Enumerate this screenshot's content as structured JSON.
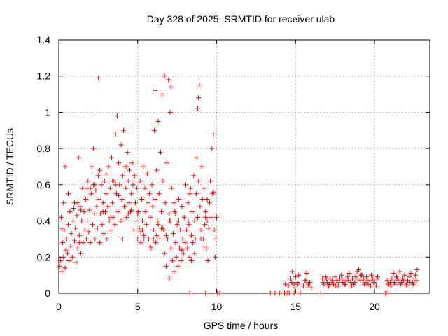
{
  "chart_data": {
    "type": "scatter",
    "title": "Day 328 of 2025, SRMTID for receiver ulab",
    "xlabel": "GPS time / hours",
    "ylabel": "SRMTID / TECUs",
    "xlim": [
      0,
      23.5
    ],
    "ylim": [
      0,
      1.4
    ],
    "xticks": [
      0,
      5,
      10,
      15,
      20
    ],
    "xtick_labels": [
      "0",
      "5",
      "10",
      "15",
      "20"
    ],
    "yticks": [
      0,
      0.2,
      0.4,
      0.6,
      0.8,
      1,
      1.2,
      1.4
    ],
    "ytick_labels": [
      "0",
      "0.2",
      "0.4",
      "0.6",
      "0.8",
      "1",
      "1.2",
      "1.4"
    ],
    "grid": true,
    "marker": "plus",
    "color": "#ff0000",
    "series": [
      {
        "name": "SRMTID",
        "x": [
          0.05,
          0.1,
          0.15,
          0.2,
          0.25,
          0.3,
          0.35,
          0.4,
          0.45,
          0.5,
          0.55,
          0.6,
          0.65,
          0.7,
          0.75,
          0.8,
          0.85,
          0.9,
          0.95,
          1.0,
          1.05,
          1.1,
          1.15,
          1.2,
          1.25,
          1.3,
          1.35,
          1.4,
          1.45,
          1.5,
          1.55,
          1.6,
          1.65,
          1.7,
          1.75,
          1.8,
          1.85,
          1.9,
          1.95,
          2.0,
          2.05,
          2.1,
          2.15,
          2.2,
          2.25,
          2.3,
          2.35,
          2.4,
          2.45,
          2.5,
          2.55,
          2.6,
          2.65,
          2.7,
          2.75,
          2.8,
          2.85,
          2.9,
          2.95,
          3.0,
          3.05,
          3.1,
          3.15,
          3.2,
          3.25,
          3.3,
          3.35,
          3.4,
          3.45,
          3.5,
          3.55,
          3.6,
          3.65,
          3.7,
          3.75,
          3.8,
          3.85,
          3.9,
          3.95,
          4.0,
          4.05,
          4.1,
          4.15,
          4.2,
          4.25,
          4.3,
          4.35,
          4.4,
          4.45,
          4.5,
          4.55,
          4.6,
          4.65,
          4.7,
          4.75,
          4.8,
          4.85,
          4.9,
          4.95,
          5.0,
          5.05,
          5.1,
          5.15,
          5.2,
          5.25,
          5.3,
          5.35,
          5.4,
          5.45,
          5.5,
          5.55,
          5.6,
          5.65,
          5.7,
          5.75,
          5.8,
          5.85,
          5.9,
          5.95,
          6.0,
          6.05,
          6.1,
          6.15,
          6.2,
          6.25,
          6.3,
          6.35,
          6.4,
          6.45,
          6.5,
          6.55,
          6.6,
          6.65,
          6.7,
          6.75,
          6.8,
          6.85,
          6.9,
          6.95,
          7.0,
          7.05,
          7.1,
          7.15,
          7.2,
          7.25,
          7.3,
          7.35,
          7.4,
          7.45,
          7.5,
          7.55,
          7.6,
          7.65,
          7.7,
          7.75,
          7.8,
          7.85,
          7.9,
          7.95,
          8.0,
          8.05,
          8.1,
          8.15,
          8.2,
          8.25,
          8.3,
          8.35,
          8.4,
          8.45,
          8.5,
          8.55,
          8.6,
          8.65,
          8.7,
          8.75,
          8.8,
          8.85,
          8.9,
          8.95,
          9.0,
          9.05,
          9.1,
          9.15,
          9.2,
          9.25,
          9.3,
          9.35,
          9.4,
          9.45,
          9.5,
          9.55,
          9.6,
          9.65,
          9.7,
          9.75,
          9.8,
          9.85,
          9.9,
          9.95,
          10.0,
          0.2,
          0.6,
          1.0,
          1.4,
          1.8,
          2.2,
          2.6,
          3.0,
          3.4,
          3.8,
          4.2,
          4.6,
          5.0,
          5.4,
          5.8,
          6.2,
          6.6,
          7.0,
          7.4,
          7.8,
          8.2,
          8.6,
          9.0,
          9.4,
          9.8,
          0.4,
          1.2,
          2.0,
          2.8,
          3.6,
          4.4,
          5.2,
          6.0,
          6.8,
          7.6,
          8.4,
          9.2,
          0.3,
          1.3,
          2.3,
          3.3,
          4.3,
          5.3,
          6.3,
          7.3,
          8.3,
          9.3,
          4.0,
          4.05,
          6.5,
          7.0,
          7.05,
          8.8,
          8.85,
          2.5,
          6.1,
          6.7,
          7.1,
          8.3,
          9.3,
          10.05,
          10.2,
          14.3,
          14.4,
          14.5,
          14.6,
          14.7,
          14.8,
          14.9,
          15.0,
          15.1,
          15.2,
          15.5,
          15.6,
          15.7,
          15.8,
          15.9,
          16.0,
          16.7,
          16.8,
          16.9,
          17.0,
          17.1,
          17.2,
          17.3,
          17.4,
          17.5,
          17.6,
          17.7,
          17.8,
          17.9,
          18.0,
          18.1,
          18.2,
          18.3,
          18.4,
          18.5,
          18.6,
          18.7,
          18.8,
          18.9,
          19.0,
          19.1,
          19.2,
          19.3,
          19.4,
          19.5,
          19.6,
          19.7,
          19.8,
          19.9,
          20.0,
          20.1,
          20.2,
          20.8,
          20.9,
          21.0,
          21.1,
          21.2,
          21.3,
          21.4,
          21.5,
          21.6,
          21.7,
          21.8,
          21.9,
          22.0,
          22.1,
          22.2,
          22.3,
          22.4,
          22.5,
          22.6,
          22.7,
          14.35,
          14.55,
          14.75,
          14.95,
          15.15,
          15.65,
          15.85,
          16.75,
          16.95,
          17.15,
          17.35,
          17.55,
          17.75,
          17.95,
          18.15,
          18.35,
          18.55,
          18.75,
          18.95,
          19.15,
          19.35,
          19.55,
          19.75,
          19.95,
          20.15,
          20.85,
          21.05,
          21.25,
          21.45,
          21.65,
          21.85,
          22.05,
          22.25,
          22.45,
          22.65,
          13.4,
          13.7,
          14.0,
          14.9,
          15.3,
          16.6,
          20.7,
          20.75
        ],
        "y": [
          0.15,
          0.18,
          0.42,
          0.12,
          0.28,
          0.2,
          0.35,
          0.14,
          0.24,
          0.3,
          0.22,
          0.38,
          0.18,
          0.45,
          0.26,
          0.33,
          0.2,
          0.4,
          0.47,
          0.29,
          0.36,
          0.17,
          0.43,
          0.25,
          0.75,
          0.32,
          0.48,
          0.22,
          0.4,
          0.58,
          0.28,
          0.45,
          0.35,
          0.52,
          0.3,
          0.4,
          0.62,
          0.34,
          0.46,
          0.28,
          0.55,
          0.7,
          0.38,
          0.8,
          0.44,
          0.3,
          0.57,
          0.48,
          0.36,
          0.65,
          0.52,
          0.28,
          0.44,
          0.6,
          0.38,
          0.5,
          0.33,
          0.62,
          0.45,
          0.55,
          0.3,
          0.48,
          0.7,
          0.4,
          0.58,
          0.35,
          0.75,
          0.5,
          0.42,
          0.62,
          0.38,
          0.88,
          0.55,
          0.98,
          0.45,
          0.72,
          0.6,
          0.4,
          0.82,
          0.52,
          0.65,
          0.9,
          0.48,
          0.7,
          0.58,
          0.42,
          0.78,
          0.62,
          0.5,
          0.68,
          0.45,
          0.55,
          0.72,
          0.6,
          0.35,
          0.65,
          0.5,
          0.4,
          0.58,
          0.3,
          0.45,
          0.36,
          0.62,
          0.28,
          0.52,
          0.4,
          0.7,
          0.32,
          0.58,
          0.45,
          0.38,
          0.66,
          0.5,
          0.3,
          0.55,
          0.42,
          0.25,
          0.6,
          0.48,
          0.35,
          0.9,
          0.52,
          0.28,
          0.68,
          0.4,
          0.95,
          0.55,
          0.3,
          0.78,
          0.45,
          1.1,
          0.62,
          0.35,
          0.22,
          0.5,
          0.15,
          0.72,
          0.3,
          1.18,
          0.08,
          0.4,
          0.25,
          0.58,
          0.18,
          0.33,
          0.12,
          0.45,
          0.28,
          0.2,
          0.38,
          0.15,
          0.52,
          0.25,
          0.35,
          0.18,
          0.48,
          0.3,
          0.22,
          0.42,
          0.28,
          0.6,
          0.35,
          0.25,
          0.5,
          0.38,
          0.2,
          0.58,
          0.32,
          0.45,
          0.28,
          0.65,
          0.4,
          0.3,
          0.55,
          0.75,
          0.42,
          0.62,
          1.15,
          0.48,
          0.35,
          0.7,
          0.52,
          0.3,
          0.58,
          0.38,
          0.45,
          0.25,
          0.4,
          0.18,
          0.36,
          0.5,
          0.62,
          0.42,
          0.8,
          0.55,
          0.88,
          0.35,
          0.2,
          0.3,
          0.42,
          0.36,
          0.55,
          0.5,
          0.46,
          0.58,
          0.6,
          0.68,
          0.66,
          0.62,
          0.54,
          0.48,
          0.46,
          0.44,
          0.3,
          0.26,
          0.32,
          0.36,
          0.4,
          0.44,
          0.24,
          0.4,
          0.22,
          0.3,
          0.52,
          0.56,
          0.7,
          0.5,
          0.58,
          0.45,
          0.6,
          0.44,
          0.34,
          0.3,
          0.32,
          0.4,
          0.18,
          0.26,
          0.5,
          0.28,
          0.6,
          0.42,
          0.7,
          0.35,
          0.38,
          0.5,
          0.55,
          0.42,
          0.4,
          0.3,
          0.36,
          0.44,
          1.0,
          1.02,
          1.08,
          1.19,
          1.12,
          1.2,
          1.14,
          0.0,
          0.0,
          0.0,
          0.0,
          0.0,
          0.0,
          0.0,
          0.0,
          0.08,
          0.12,
          0.05,
          0.09,
          0.06,
          0.1,
          0.04,
          0.07,
          0.11,
          0.05,
          0.06,
          0.03,
          0.08,
          0.05,
          0.09,
          0.06,
          0.04,
          0.08,
          0.06,
          0.05,
          0.09,
          0.07,
          0.04,
          0.08,
          0.1,
          0.06,
          0.05,
          0.07,
          0.09,
          0.11,
          0.06,
          0.08,
          0.05,
          0.09,
          0.12,
          0.13,
          0.07,
          0.1,
          0.08,
          0.06,
          0.09,
          0.05,
          0.07,
          0.1,
          0.08,
          0.06,
          0.04,
          0.09,
          0.07,
          0.05,
          0.06,
          0.08,
          0.11,
          0.05,
          0.09,
          0.07,
          0.12,
          0.06,
          0.08,
          0.1,
          0.05,
          0.07,
          0.09,
          0.11,
          0.06,
          0.08,
          0.1,
          0.13,
          0.05,
          0.04,
          0.06,
          0.03,
          0.05,
          0.07,
          0.04,
          0.06,
          0.08,
          0.05,
          0.07,
          0.04,
          0.06,
          0.08,
          0.05,
          0.07,
          0.04,
          0.06,
          0.08,
          0.1,
          0.05,
          0.07,
          0.04,
          0.06,
          0.08,
          0.05,
          0.04,
          0.06,
          0.08,
          0.05,
          0.07,
          0.04,
          0.06,
          0.05,
          0.07,
          0.0,
          0.0,
          0.0,
          0.0,
          0.0,
          0.0,
          0.0,
          0.0
        ]
      }
    ]
  }
}
